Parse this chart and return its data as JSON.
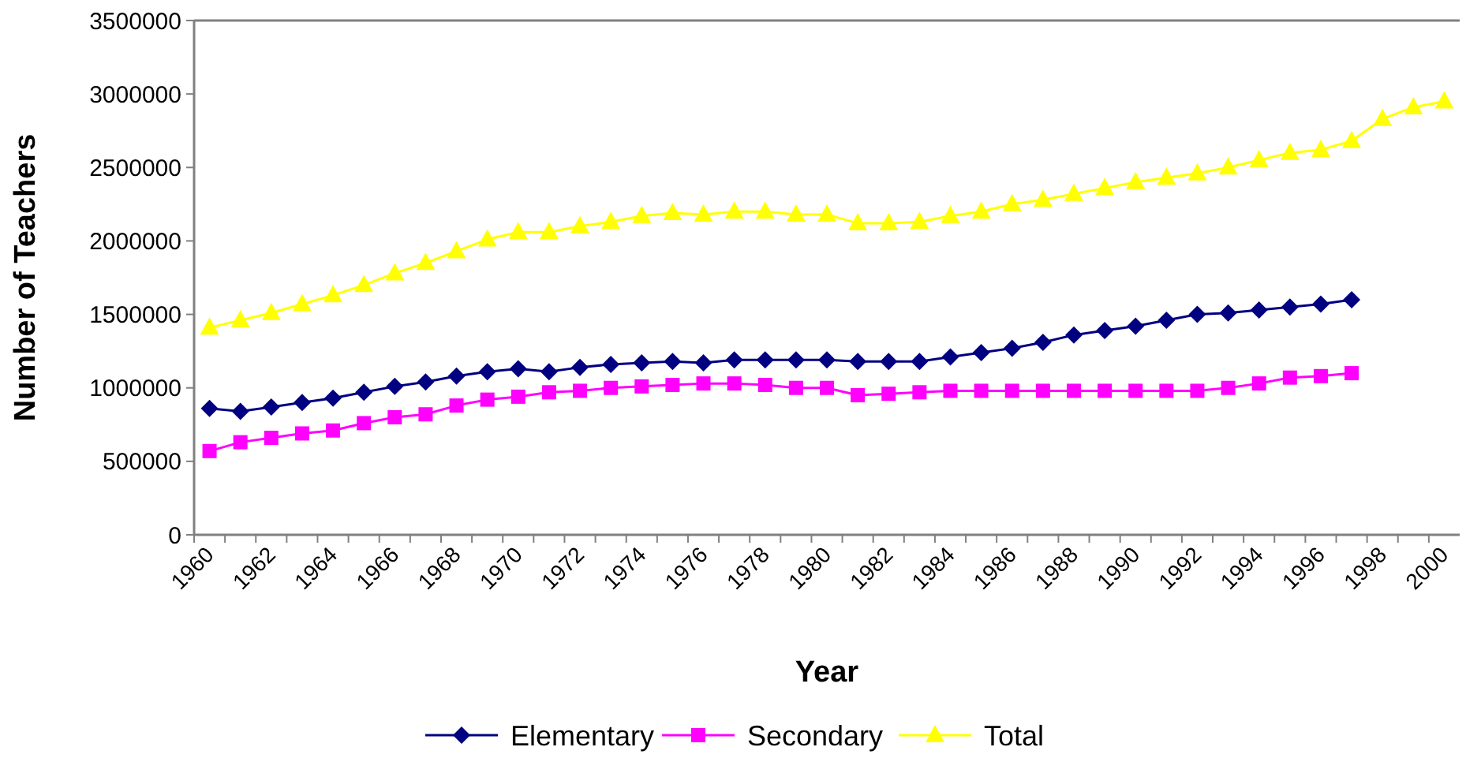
{
  "chart_data": {
    "type": "line",
    "xlabel": "Year",
    "ylabel": "Number of Teachers",
    "categories": [
      "1960",
      null,
      "1962",
      null,
      "1964",
      null,
      "1966",
      null,
      "1968",
      null,
      "1970",
      null,
      "1972",
      null,
      "1974",
      null,
      "1976",
      null,
      "1978",
      null,
      "1980",
      null,
      "1982",
      null,
      "1984",
      null,
      "1986",
      null,
      "1988",
      null,
      "1990",
      null,
      "1992",
      null,
      "1994",
      null,
      "1996",
      null,
      "1998",
      null,
      "2000"
    ],
    "ylim": [
      0,
      3500000
    ],
    "yticks": [
      0,
      500000,
      1000000,
      1500000,
      2000000,
      2500000,
      3000000,
      3500000
    ],
    "grid": false,
    "legend": "bottom",
    "series": [
      {
        "name": "Elementary",
        "color": "#000080",
        "marker": "diamond",
        "values": [
          860000,
          840000,
          870000,
          900000,
          930000,
          970000,
          1010000,
          1040000,
          1080000,
          1110000,
          1130000,
          1110000,
          1140000,
          1160000,
          1170000,
          1180000,
          1170000,
          1190000,
          1190000,
          1190000,
          1190000,
          1180000,
          1180000,
          1180000,
          1210000,
          1240000,
          1270000,
          1310000,
          1360000,
          1390000,
          1420000,
          1460000,
          1500000,
          1510000,
          1530000,
          1550000,
          1570000,
          1600000,
          null,
          null,
          null
        ]
      },
      {
        "name": "Secondary",
        "color": "#ff00ff",
        "marker": "square",
        "values": [
          570000,
          630000,
          660000,
          690000,
          710000,
          760000,
          800000,
          820000,
          880000,
          920000,
          940000,
          970000,
          980000,
          1000000,
          1010000,
          1020000,
          1030000,
          1030000,
          1020000,
          1000000,
          1000000,
          950000,
          960000,
          970000,
          980000,
          980000,
          980000,
          980000,
          980000,
          980000,
          980000,
          980000,
          980000,
          1000000,
          1030000,
          1070000,
          1080000,
          1100000,
          null,
          null,
          null
        ]
      },
      {
        "name": "Total",
        "color": "#ffff00",
        "marker": "triangle",
        "values": [
          1410000,
          1460000,
          1510000,
          1570000,
          1630000,
          1700000,
          1780000,
          1850000,
          1930000,
          2010000,
          2060000,
          2060000,
          2100000,
          2130000,
          2170000,
          2190000,
          2180000,
          2200000,
          2200000,
          2180000,
          2180000,
          2120000,
          2120000,
          2130000,
          2170000,
          2200000,
          2250000,
          2280000,
          2320000,
          2360000,
          2400000,
          2430000,
          2460000,
          2500000,
          2550000,
          2600000,
          2620000,
          2680000,
          2830000,
          2910000,
          2950000
        ]
      }
    ]
  }
}
